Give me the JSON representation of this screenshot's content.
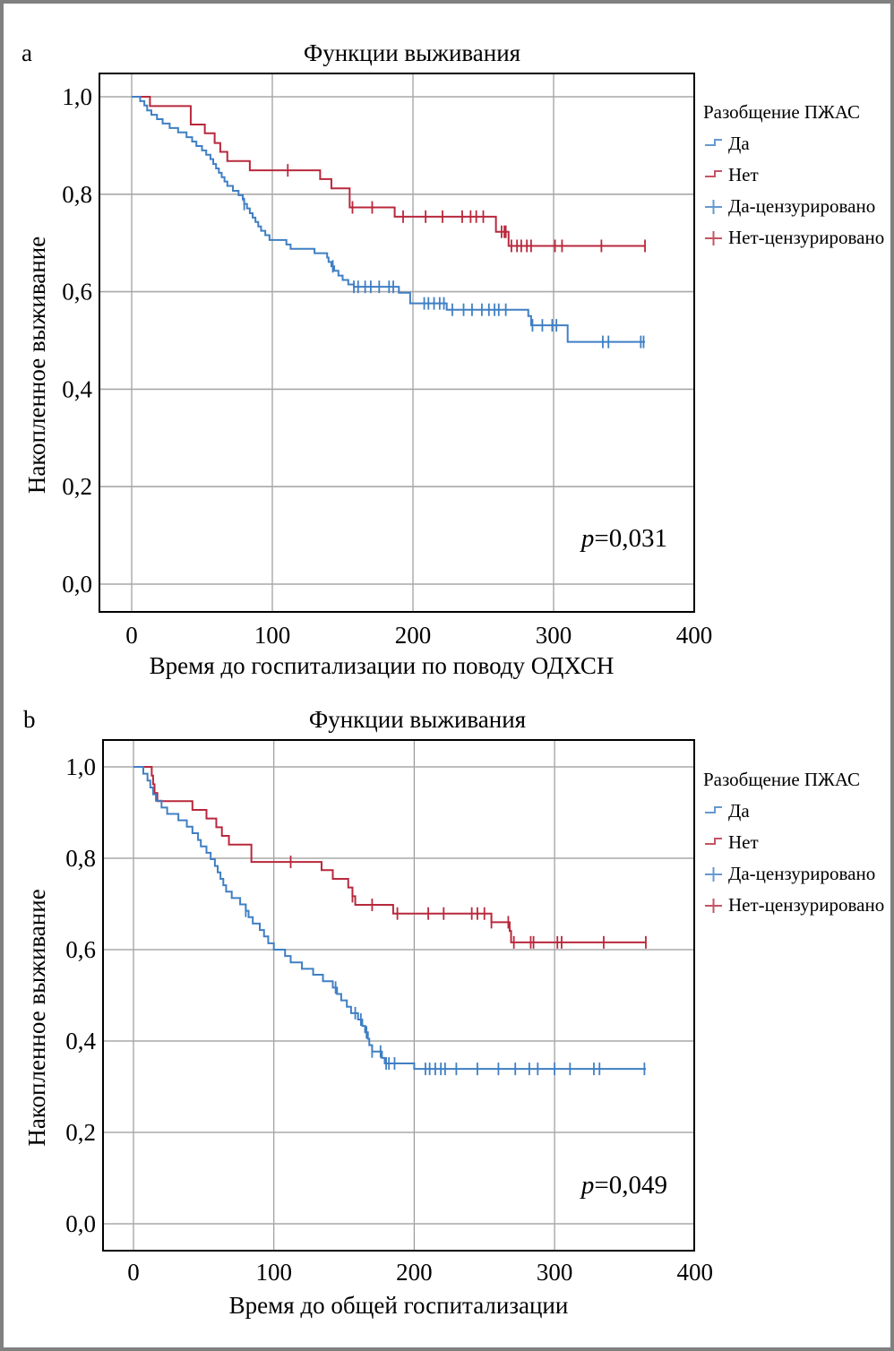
{
  "chart_data": [
    {
      "panel": "a",
      "type": "line",
      "subtype": "kaplan-meier",
      "title": "Функции выживания",
      "xlabel": "Время до госпитализации по поводу ОДХСН",
      "ylabel": "Накопленное выживание",
      "xlim": [
        -23,
        400
      ],
      "ylim": [
        -0.055,
        1.05
      ],
      "xticks": [
        0,
        100,
        200,
        300,
        400
      ],
      "xtick_labels": [
        "0",
        "100",
        "200",
        "300",
        "400"
      ],
      "yticks": [
        0,
        0.2,
        0.4,
        0.6,
        0.8,
        1.0
      ],
      "ytick_labels": [
        "0,0",
        "0,2",
        "0,4",
        "0,6",
        "0,8",
        "1,0"
      ],
      "grid": true,
      "annotation": {
        "italic": "p",
        "text": "=0,031"
      },
      "legend": {
        "title": "Разобщение ПЖАС",
        "placement": "right",
        "items": [
          {
            "label": "Да",
            "kind": "step",
            "color": "#3f7fc4"
          },
          {
            "label": "Нет",
            "kind": "step",
            "color": "#b8283c"
          },
          {
            "label": "Да-цензурировано",
            "kind": "censor",
            "color": "#3f7fc4"
          },
          {
            "label": "Нет-цензурировано",
            "kind": "censor",
            "color": "#b8283c"
          }
        ]
      },
      "series": [
        {
          "name": "Нет",
          "color": "#b8283c",
          "steps": [
            [
              0,
              1.0
            ],
            [
              13,
              0.981
            ],
            [
              42,
              0.943
            ],
            [
              52,
              0.925
            ],
            [
              59,
              0.905
            ],
            [
              63,
              0.887
            ],
            [
              68,
              0.868
            ],
            [
              84,
              0.849
            ],
            [
              134,
              0.831
            ],
            [
              142,
              0.812
            ],
            [
              155,
              0.773
            ],
            [
              187,
              0.754
            ],
            [
              259,
              0.723
            ],
            [
              268,
              0.694
            ]
          ],
          "end": 365,
          "censored": [
            111,
            157,
            171,
            193,
            209,
            221,
            235,
            241,
            245,
            250,
            263,
            265,
            266,
            270,
            274,
            277,
            281,
            284,
            301,
            306,
            334,
            365
          ]
        },
        {
          "name": "Да",
          "color": "#3f7fc4",
          "steps": [
            [
              0,
              1.0
            ],
            [
              6,
              0.991
            ],
            [
              9,
              0.982
            ],
            [
              11,
              0.972
            ],
            [
              14,
              0.963
            ],
            [
              18,
              0.954
            ],
            [
              22,
              0.945
            ],
            [
              27,
              0.936
            ],
            [
              33,
              0.927
            ],
            [
              39,
              0.917
            ],
            [
              43,
              0.908
            ],
            [
              46,
              0.899
            ],
            [
              50,
              0.89
            ],
            [
              53,
              0.881
            ],
            [
              56,
              0.872
            ],
            [
              58,
              0.862
            ],
            [
              60,
              0.853
            ],
            [
              62,
              0.844
            ],
            [
              64,
              0.835
            ],
            [
              66,
              0.826
            ],
            [
              68,
              0.817
            ],
            [
              72,
              0.807
            ],
            [
              76,
              0.798
            ],
            [
              79,
              0.789
            ],
            [
              80,
              0.78
            ],
            [
              82,
              0.771
            ],
            [
              84,
              0.761
            ],
            [
              86,
              0.752
            ],
            [
              88,
              0.743
            ],
            [
              90,
              0.734
            ],
            [
              92,
              0.725
            ],
            [
              95,
              0.716
            ],
            [
              98,
              0.706
            ],
            [
              110,
              0.697
            ],
            [
              113,
              0.688
            ],
            [
              130,
              0.679
            ],
            [
              139,
              0.67
            ],
            [
              140,
              0.661
            ],
            [
              142,
              0.652
            ],
            [
              144,
              0.643
            ],
            [
              147,
              0.633
            ],
            [
              150,
              0.624
            ],
            [
              154,
              0.615
            ],
            [
              158,
              0.61
            ],
            [
              190,
              0.598
            ],
            [
              198,
              0.576
            ],
            [
              224,
              0.563
            ],
            [
              282,
              0.55
            ],
            [
              284,
              0.531
            ],
            [
              310,
              0.497
            ]
          ],
          "end": 365,
          "censored": [
            80,
            143,
            158,
            161,
            166,
            170,
            176,
            183,
            186,
            208,
            211,
            215,
            219,
            222,
            228,
            236,
            242,
            249,
            254,
            258,
            261,
            266,
            285,
            292,
            299,
            302,
            335,
            339,
            362,
            364
          ]
        }
      ]
    },
    {
      "panel": "b",
      "type": "line",
      "subtype": "kaplan-meier",
      "title": "Функции выживания",
      "xlabel": "Время до общей госпитализации",
      "ylabel": "Накопленное выживание",
      "xlim": [
        -22,
        400
      ],
      "ylim": [
        -0.06,
        1.06
      ],
      "xticks": [
        0,
        100,
        200,
        300,
        400
      ],
      "xtick_labels": [
        "0",
        "100",
        "200",
        "300",
        "400"
      ],
      "yticks": [
        0,
        0.2,
        0.4,
        0.6,
        0.8,
        1.0
      ],
      "ytick_labels": [
        "0,0",
        "0,2",
        "0,4",
        "0,6",
        "0,8",
        "1,0"
      ],
      "grid": true,
      "annotation": {
        "italic": "p",
        "text": "=0,049"
      },
      "legend": {
        "title": "Разобщение ПЖАС",
        "placement": "right",
        "items": [
          {
            "label": "Да",
            "kind": "step",
            "color": "#3f7fc4"
          },
          {
            "label": "Нет",
            "kind": "step",
            "color": "#b8283c"
          },
          {
            "label": "Да-цензурировано",
            "kind": "censor",
            "color": "#3f7fc4"
          },
          {
            "label": "Нет-цензурировано",
            "kind": "censor",
            "color": "#b8283c"
          }
        ]
      },
      "series": [
        {
          "name": "Нет",
          "color": "#b8283c",
          "steps": [
            [
              0,
              1.0
            ],
            [
              13,
              0.981
            ],
            [
              14,
              0.962
            ],
            [
              15,
              0.943
            ],
            [
              17,
              0.925
            ],
            [
              42,
              0.906
            ],
            [
              52,
              0.887
            ],
            [
              59,
              0.868
            ],
            [
              63,
              0.849
            ],
            [
              68,
              0.83
            ],
            [
              84,
              0.811
            ],
            [
              84,
              0.792
            ],
            [
              134,
              0.774
            ],
            [
              142,
              0.755
            ],
            [
              153,
              0.736
            ],
            [
              156,
              0.717
            ],
            [
              158,
              0.698
            ],
            [
              185,
              0.679
            ],
            [
              255,
              0.66
            ],
            [
              268,
              0.641
            ],
            [
              269,
              0.616
            ]
          ],
          "end": 365,
          "censored": [
            112,
            156,
            170,
            188,
            210,
            221,
            241,
            245,
            250,
            255,
            267,
            271,
            283,
            285,
            302,
            305,
            335,
            365
          ]
        },
        {
          "name": "Да",
          "color": "#3f7fc4",
          "steps": [
            [
              0,
              1.0
            ],
            [
              7,
              0.985
            ],
            [
              10,
              0.97
            ],
            [
              12,
              0.955
            ],
            [
              14,
              0.94
            ],
            [
              16,
              0.926
            ],
            [
              20,
              0.911
            ],
            [
              24,
              0.897
            ],
            [
              32,
              0.883
            ],
            [
              38,
              0.869
            ],
            [
              42,
              0.855
            ],
            [
              46,
              0.84
            ],
            [
              48,
              0.826
            ],
            [
              52,
              0.812
            ],
            [
              55,
              0.798
            ],
            [
              58,
              0.783
            ],
            [
              60,
              0.769
            ],
            [
              62,
              0.755
            ],
            [
              64,
              0.741
            ],
            [
              66,
              0.727
            ],
            [
              70,
              0.713
            ],
            [
              76,
              0.699
            ],
            [
              80,
              0.685
            ],
            [
              82,
              0.671
            ],
            [
              85,
              0.657
            ],
            [
              90,
              0.643
            ],
            [
              93,
              0.629
            ],
            [
              96,
              0.614
            ],
            [
              100,
              0.6
            ],
            [
              108,
              0.586
            ],
            [
              112,
              0.572
            ],
            [
              120,
              0.558
            ],
            [
              128,
              0.545
            ],
            [
              135,
              0.531
            ],
            [
              142,
              0.517
            ],
            [
              145,
              0.503
            ],
            [
              148,
              0.489
            ],
            [
              152,
              0.475
            ],
            [
              155,
              0.461
            ],
            [
              160,
              0.447
            ],
            [
              163,
              0.433
            ],
            [
              165,
              0.419
            ],
            [
              167,
              0.405
            ],
            [
              168,
              0.391
            ],
            [
              170,
              0.377
            ],
            [
              177,
              0.363
            ],
            [
              179,
              0.351
            ],
            [
              200,
              0.339
            ]
          ],
          "end": 365,
          "censored": [
            80,
            144,
            158,
            162,
            166,
            170,
            176,
            180,
            182,
            186,
            208,
            211,
            215,
            219,
            222,
            230,
            245,
            260,
            272,
            282,
            288,
            300,
            311,
            328,
            332,
            364
          ]
        }
      ]
    }
  ]
}
